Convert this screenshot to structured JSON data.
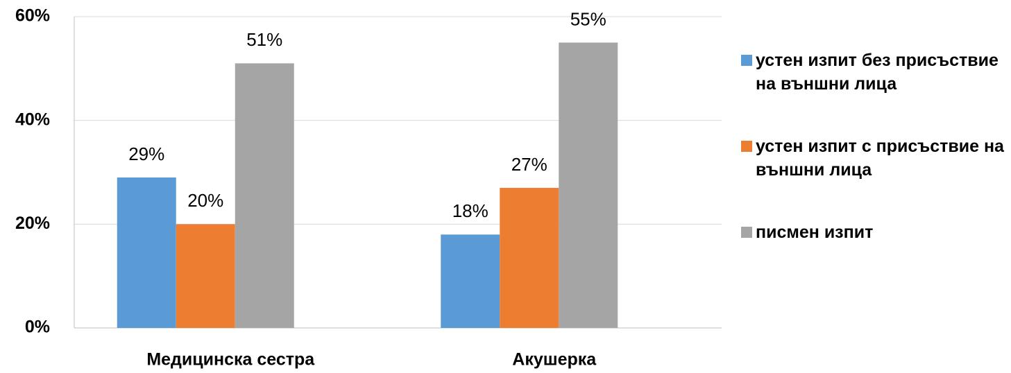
{
  "chart_data": {
    "type": "bar",
    "categories": [
      "Медицинска сестра",
      "Акушерка"
    ],
    "series": [
      {
        "name": "устен изпит без присъствие на външни лица",
        "color": "#5b9bd5",
        "values": [
          29,
          18
        ],
        "value_labels": [
          "29%",
          "18%"
        ]
      },
      {
        "name": "устен изпит с присъствие на външни лица",
        "color": "#ed7d31",
        "values": [
          20,
          27
        ],
        "value_labels": [
          "20%",
          "27%"
        ]
      },
      {
        "name": "писмен изпит",
        "color": "#a5a5a5",
        "values": [
          51,
          55
        ],
        "value_labels": [
          "51%",
          "55%"
        ]
      }
    ],
    "ylim": [
      0,
      60
    ],
    "yticks": [
      {
        "value": 0,
        "label": "0%"
      },
      {
        "value": 20,
        "label": "20%"
      },
      {
        "value": 40,
        "label": "40%"
      },
      {
        "value": 60,
        "label": "60%"
      }
    ],
    "grid": true,
    "legend": "right"
  }
}
